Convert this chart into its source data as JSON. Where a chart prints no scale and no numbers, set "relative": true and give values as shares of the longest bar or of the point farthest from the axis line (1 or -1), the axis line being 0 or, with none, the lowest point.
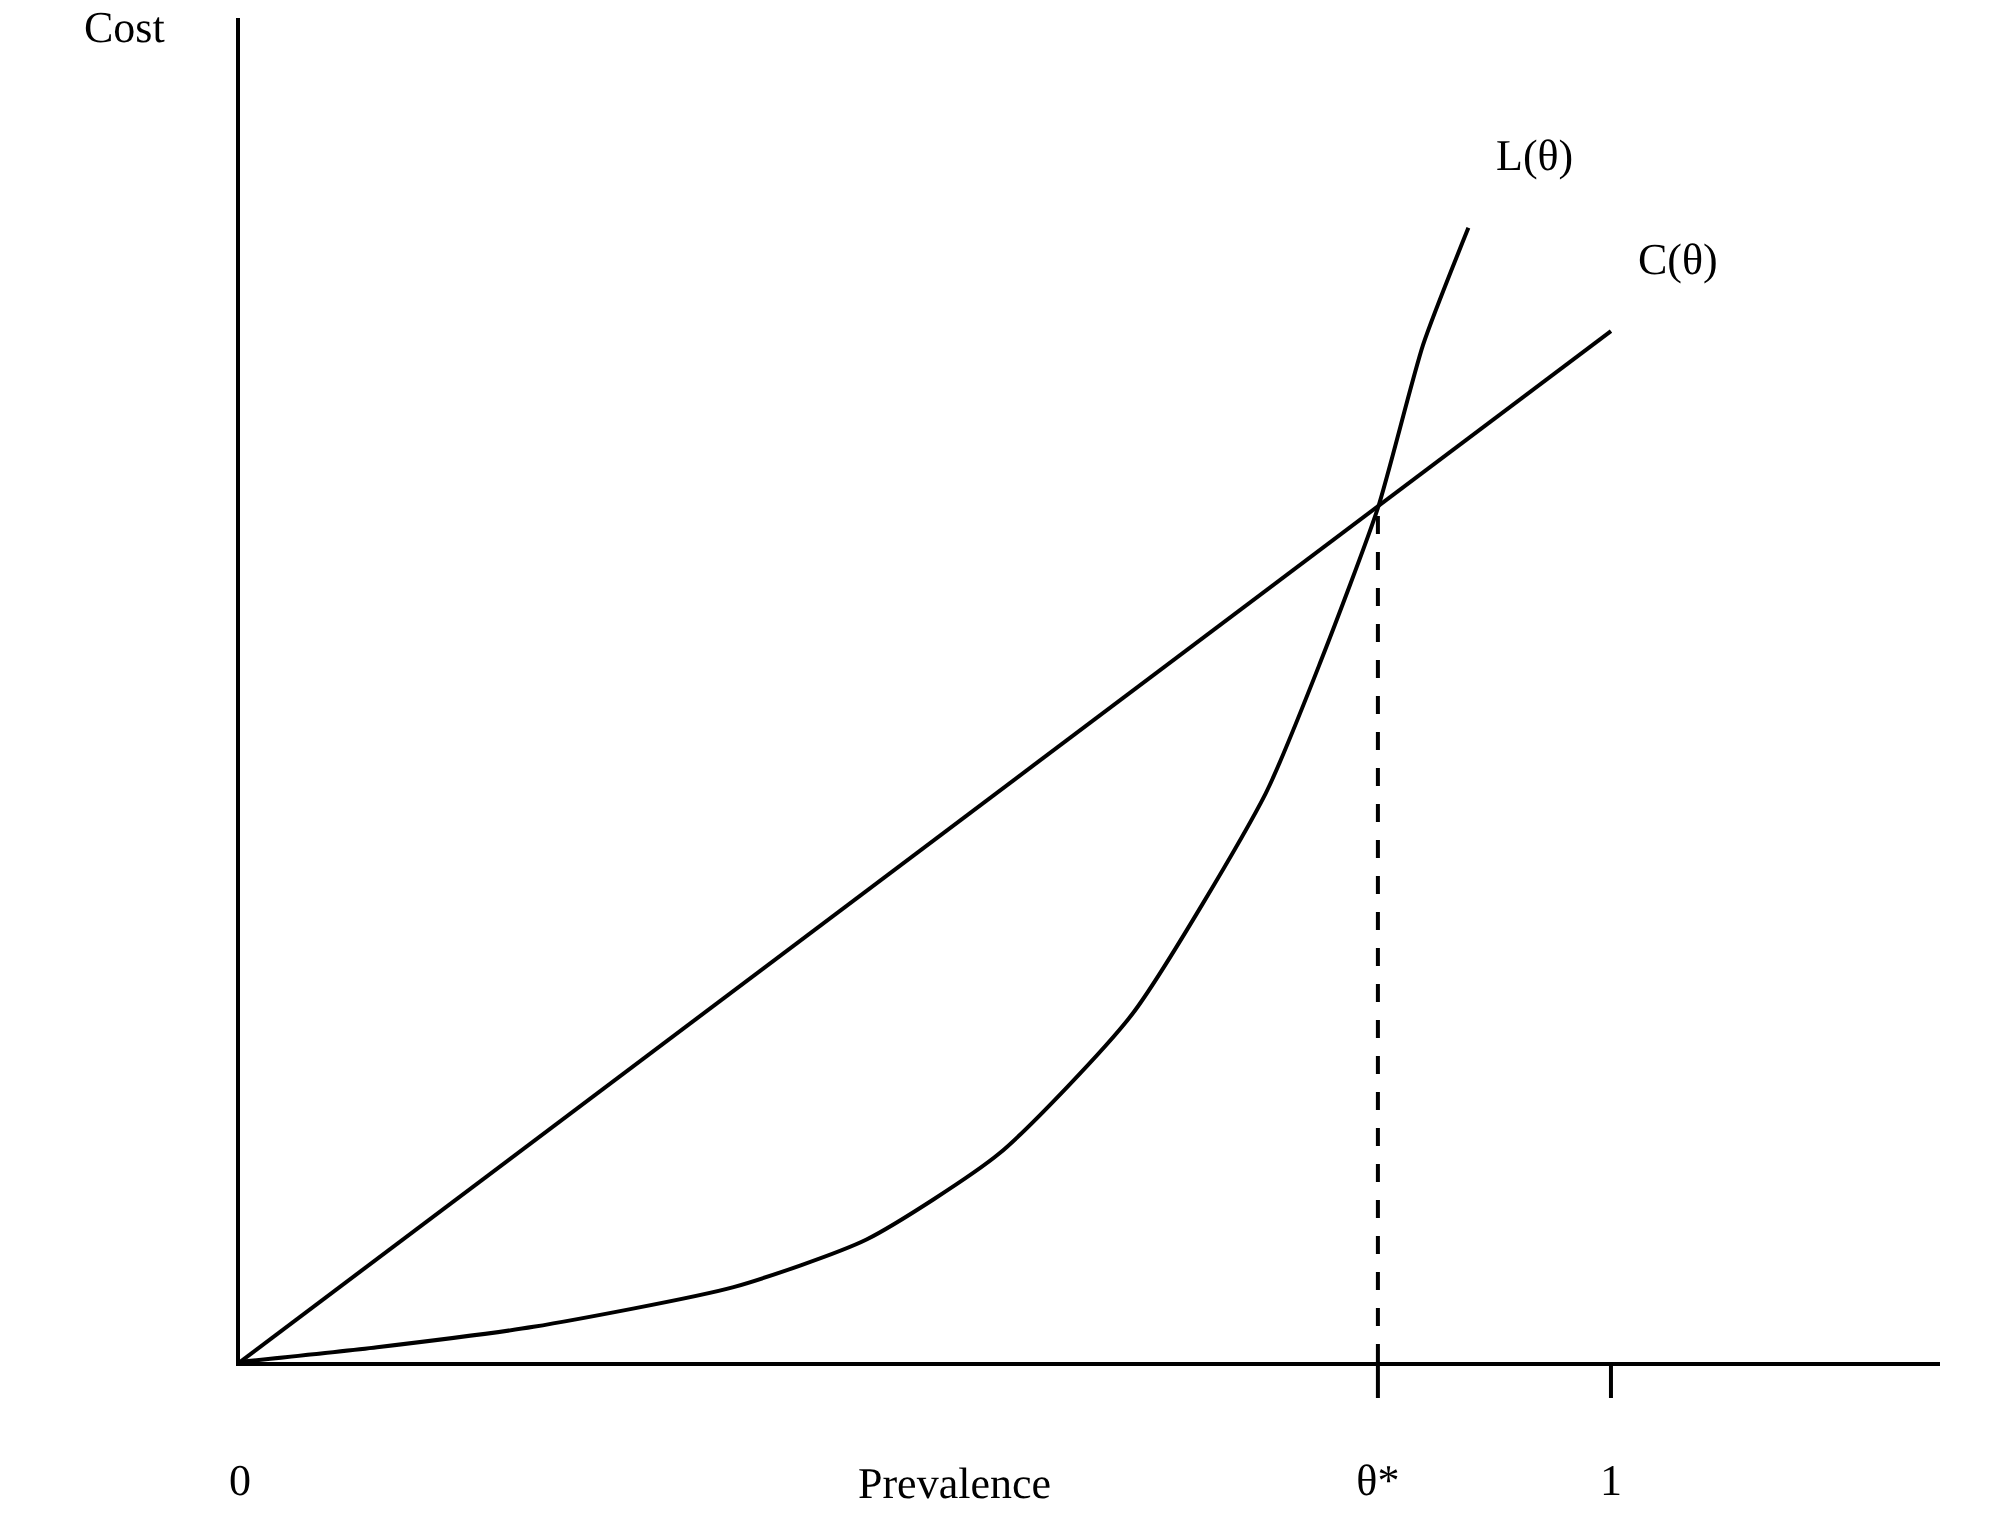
{
  "chart_data": {
    "type": "line",
    "relative": true,
    "xlabel": "Prevalence",
    "ylabel": "Cost",
    "legend": false,
    "grid": false,
    "marker": "none",
    "xlim": [
      0,
      1.24
    ],
    "xticks": [
      0,
      {
        "value": 0.83,
        "label": "θ*"
      },
      1
    ],
    "series": [
      {
        "name": "L(θ)",
        "color": "#000000",
        "x": [
          0,
          0.1,
          0.214,
          0.36,
          0.457,
          0.554,
          0.651,
          0.748,
          0.789,
          0.83,
          0.863,
          0.896
        ],
        "values": [
          0,
          0.013,
          0.031,
          0.066,
          0.108,
          0.184,
          0.307,
          0.501,
          0.62,
          0.753,
          0.897,
          1
        ]
      },
      {
        "name": "C(θ)",
        "color": "#000000",
        "x": [
          0,
          1
        ],
        "values": [
          0,
          0.909
        ]
      }
    ],
    "ref_lines": [
      {
        "axis": "x",
        "value": 0.83,
        "color": "#000000",
        "line_style": "dashed"
      }
    ]
  }
}
